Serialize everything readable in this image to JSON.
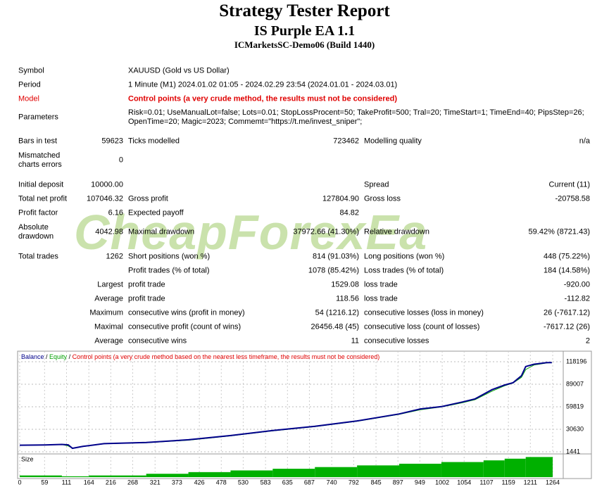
{
  "header": {
    "title": "Strategy Tester Report",
    "subtitle": "IS Purple EA 1.1",
    "server": "ICMarketsSC-Demo06 (Build 1440)"
  },
  "watermark": "CheapForexEa",
  "table": {
    "rows": [
      {
        "cells": [
          "Symbol",
          null,
          "XAUUSD (Gold vs US Dollar)"
        ]
      },
      {
        "cells": [
          "Period",
          null,
          "1 Minute (M1) 2024.01.02 01:05 - 2024.02.29 23:54 (2024.01.01 - 2024.03.01)"
        ]
      },
      {
        "cells": [
          "Model",
          null,
          "Control points (a very crude method, the results must not be considered)"
        ],
        "color": "#e00000"
      },
      {
        "cells": [
          "Parameters",
          null,
          "Risk=0.01; UseManualLot=false; Lots=0.01; StopLossProcent=50; TakeProfit=500; Tral=20; TimeStart=1; TimeEnd=40; PipsStep=26; OpenTime=20; Magic=2023; Commemt=\"https://t.me/invest_sniper\";"
        ]
      },
      {
        "cells": [
          "Bars in test",
          "59623",
          "Ticks modelled",
          "723462",
          "Modelling quality",
          "n/a"
        ]
      },
      {
        "cells": [
          "Mismatched charts errors",
          "0"
        ]
      },
      {
        "cells": [
          "Initial deposit",
          "10000.00",
          null,
          null,
          "Spread",
          "Current (11)"
        ]
      },
      {
        "cells": [
          "Total net profit",
          "107046.32",
          "Gross profit",
          "127804.90",
          "Gross loss",
          "-20758.58"
        ]
      },
      {
        "cells": [
          "Profit factor",
          "6.16",
          "Expected payoff",
          "84.82"
        ]
      },
      {
        "cells": [
          "Absolute drawdown",
          "4042.98",
          "Maximal drawdown",
          "37972.66 (41.30%)",
          "Relative drawdown",
          "59.42% (8721.43)"
        ]
      },
      {
        "cells": [
          "Total trades",
          "1262",
          "Short positions (won %)",
          "814 (91.03%)",
          "Long positions (won %)",
          "448 (75.22%)"
        ]
      },
      {
        "cells": [
          null,
          null,
          "Profit trades (% of total)",
          "1078 (85.42%)",
          "Loss trades (% of total)",
          "184 (14.58%)"
        ]
      },
      {
        "cells": [
          null,
          "Largest",
          "profit trade",
          "1529.08",
          "loss trade",
          "-920.00"
        ]
      },
      {
        "cells": [
          null,
          "Average",
          "profit trade",
          "118.56",
          "loss trade",
          "-112.82"
        ]
      },
      {
        "cells": [
          null,
          "Maximum",
          "consecutive wins (profit in money)",
          "54 (1216.12)",
          "consecutive losses (loss in money)",
          "26 (-7617.12)"
        ]
      },
      {
        "cells": [
          null,
          "Maximal",
          "consecutive profit (count of wins)",
          "26456.48 (45)",
          "consecutive loss (count of losses)",
          "-7617.12 (26)"
        ]
      },
      {
        "cells": [
          null,
          "Average",
          "consecutive wins",
          "11",
          "consecutive losses",
          "2"
        ]
      }
    ]
  },
  "chart_data": {
    "type": "line",
    "legend_separator": " / ",
    "note": "Control points (a very crude method based on the nearest less timeframe, the results must not be considered)",
    "note_color": "#e00000",
    "x": [
      0,
      60,
      100,
      115,
      125,
      150,
      200,
      300,
      400,
      500,
      600,
      700,
      800,
      900,
      950,
      1000,
      1050,
      1080,
      1120,
      1150,
      1170,
      1190,
      1200,
      1220,
      1250,
      1262
    ],
    "series": [
      {
        "name": "Equity",
        "color": "#00a000",
        "values": [
          10000,
          10300,
          10900,
          9000,
          5957,
          8200,
          11800,
          13200,
          16500,
          22000,
          28500,
          34000,
          41000,
          50000,
          56000,
          59500,
          65000,
          69000,
          80000,
          87000,
          90500,
          98000,
          108000,
          114000,
          116500,
          117046
        ]
      },
      {
        "name": "Balance",
        "color": "#00008b",
        "values": [
          10000,
          10400,
          11000,
          10500,
          6000,
          8500,
          12000,
          13500,
          17000,
          22500,
          29000,
          34500,
          41500,
          50500,
          57000,
          60000,
          66000,
          70000,
          82000,
          88000,
          91000,
          100000,
          112000,
          115000,
          117000,
          117046
        ]
      }
    ],
    "xlim": [
      0,
      1284
    ],
    "xticks": [
      0,
      59,
      111,
      164,
      216,
      268,
      321,
      373,
      426,
      478,
      530,
      583,
      635,
      687,
      740,
      792,
      845,
      897,
      949,
      1002,
      1054,
      1107,
      1159,
      1211,
      1264
    ],
    "ylim": [
      -1300,
      129100
    ],
    "yticks": [
      1441,
      30630,
      59819,
      89007,
      118196
    ],
    "grid": true,
    "size": {
      "name": "Size",
      "color": "#00b000",
      "bins": [
        0,
        100,
        164,
        300,
        400,
        500,
        600,
        700,
        800,
        900,
        1000,
        1100,
        1150,
        1200,
        1264
      ],
      "values": [
        0.01,
        0.005,
        0.01,
        0.02,
        0.03,
        0.04,
        0.05,
        0.06,
        0.07,
        0.08,
        0.09,
        0.1,
        0.11,
        0.12
      ],
      "ylim": [
        0,
        0.13
      ]
    }
  }
}
